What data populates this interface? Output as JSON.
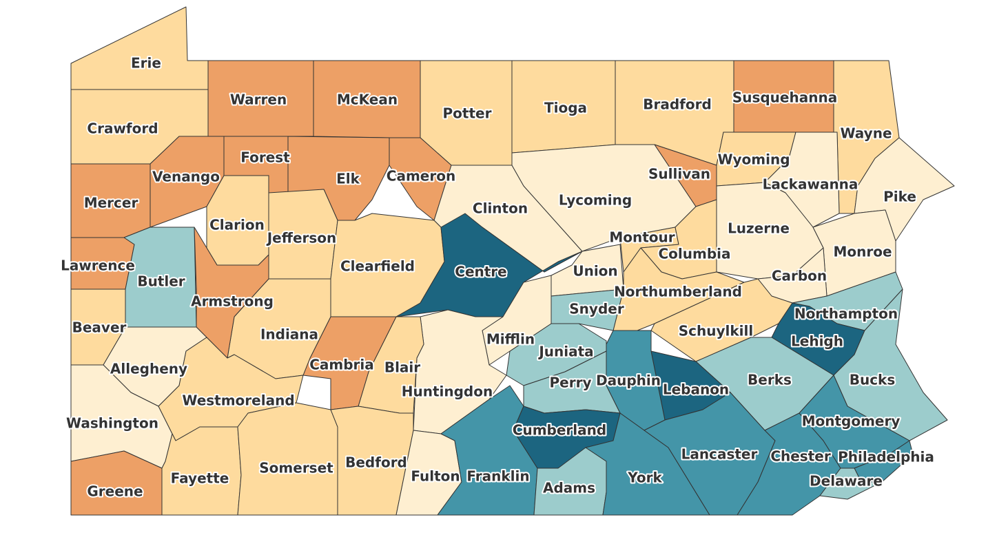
{
  "counties": [
    {
      "name": "Erie",
      "color": "#fedb9e"
    },
    {
      "name": "Crawford",
      "color": "#fedb9e"
    },
    {
      "name": "Warren",
      "color": "#eda066"
    },
    {
      "name": "McKean",
      "color": "#eda066"
    },
    {
      "name": "Potter",
      "color": "#fedb9e"
    },
    {
      "name": "Tioga",
      "color": "#fedb9e"
    },
    {
      "name": "Bradford",
      "color": "#fedb9e"
    },
    {
      "name": "Susquehanna",
      "color": "#eda066"
    },
    {
      "name": "Wayne",
      "color": "#fedb9e"
    },
    {
      "name": "Mercer",
      "color": "#eda066"
    },
    {
      "name": "Venango",
      "color": "#eda066"
    },
    {
      "name": "Forest",
      "color": "#eda066"
    },
    {
      "name": "Elk",
      "color": "#eda066"
    },
    {
      "name": "Cameron",
      "color": "#eda066"
    },
    {
      "name": "Clinton",
      "color": "#feefd1"
    },
    {
      "name": "Lycoming",
      "color": "#feefd1"
    },
    {
      "name": "Sullivan",
      "color": "#eda066"
    },
    {
      "name": "Wyoming",
      "color": "#fedb9e"
    },
    {
      "name": "Lackawanna",
      "color": "#feefd1"
    },
    {
      "name": "Pike",
      "color": "#feefd1"
    },
    {
      "name": "Lawrence",
      "color": "#eda066"
    },
    {
      "name": "Butler",
      "color": "#9ccccc"
    },
    {
      "name": "Clarion",
      "color": "#fedb9e"
    },
    {
      "name": "Jefferson",
      "color": "#fedb9e"
    },
    {
      "name": "Clearfield",
      "color": "#fedb9e"
    },
    {
      "name": "Centre",
      "color": "#1c6580"
    },
    {
      "name": "Union",
      "color": "#feefd1"
    },
    {
      "name": "Montour",
      "color": "#fedb9e"
    },
    {
      "name": "Columbia",
      "color": "#fedb9e"
    },
    {
      "name": "Luzerne",
      "color": "#feefd1"
    },
    {
      "name": "Monroe",
      "color": "#feefd1"
    },
    {
      "name": "Carbon",
      "color": "#feefd1"
    },
    {
      "name": "Northumberland",
      "color": "#fedb9e"
    },
    {
      "name": "Snyder",
      "color": "#9ccccc"
    },
    {
      "name": "Schuylkill",
      "color": "#fedb9e"
    },
    {
      "name": "Northampton",
      "color": "#9ccccc"
    },
    {
      "name": "Lehigh",
      "color": "#1c6580"
    },
    {
      "name": "Bucks",
      "color": "#9ccccc"
    },
    {
      "name": "Berks",
      "color": "#9ccccc"
    },
    {
      "name": "Lebanon",
      "color": "#1c6580"
    },
    {
      "name": "Dauphin",
      "color": "#4495a8"
    },
    {
      "name": "Juniata",
      "color": "#9ccccc"
    },
    {
      "name": "Perry",
      "color": "#9ccccc"
    },
    {
      "name": "Mifflin",
      "color": "#feefd1"
    },
    {
      "name": "Huntingdon",
      "color": "#feefd1"
    },
    {
      "name": "Blair",
      "color": "#fedb9e"
    },
    {
      "name": "Cambria",
      "color": "#eda066"
    },
    {
      "name": "Indiana",
      "color": "#fedb9e"
    },
    {
      "name": "Armstrong",
      "color": "#eda066"
    },
    {
      "name": "Beaver",
      "color": "#fedb9e"
    },
    {
      "name": "Allegheny",
      "color": "#feefd1"
    },
    {
      "name": "Washington",
      "color": "#feefd1"
    },
    {
      "name": "Westmoreland",
      "color": "#fedb9e"
    },
    {
      "name": "Fayette",
      "color": "#fedb9e"
    },
    {
      "name": "Greene",
      "color": "#eda066"
    },
    {
      "name": "Somerset",
      "color": "#fedb9e"
    },
    {
      "name": "Bedford",
      "color": "#fedb9e"
    },
    {
      "name": "Fulton",
      "color": "#feefd1"
    },
    {
      "name": "Franklin",
      "color": "#4495a8"
    },
    {
      "name": "Cumberland",
      "color": "#1c6580"
    },
    {
      "name": "Adams",
      "color": "#9ccccc"
    },
    {
      "name": "York",
      "color": "#4495a8"
    },
    {
      "name": "Lancaster",
      "color": "#4495a8"
    },
    {
      "name": "Chester",
      "color": "#4495a8"
    },
    {
      "name": "Montgomery",
      "color": "#4495a8"
    },
    {
      "name": "Philadelphia",
      "color": "#4495a8"
    },
    {
      "name": "Delaware",
      "color": "#9ccccc"
    }
  ]
}
